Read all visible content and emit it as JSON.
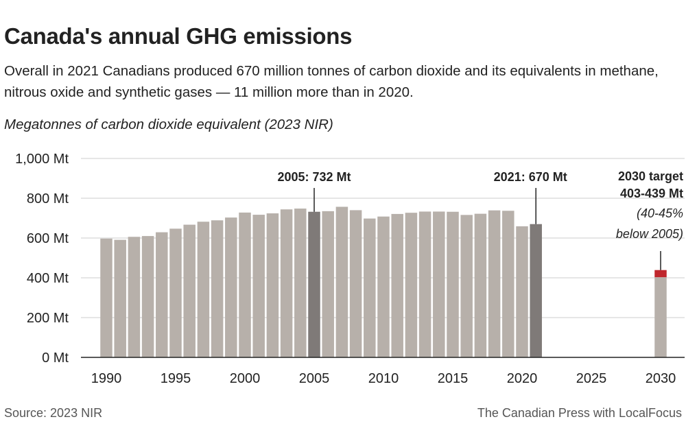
{
  "header": {
    "title": "Canada's annual GHG emissions",
    "subtitle": "Overall in 2021 Canadians produced 670 million tonnes of carbon dioxide and its equivalents in methane, nitrous oxide and synthetic gases — 11 million more than in 2020.",
    "unit_label": "Megatonnes of carbon dioxide equivalent (2023 NIR)"
  },
  "footer": {
    "source": "Source:  2023 NIR",
    "credit": "The Canadian Press with LocalFocus"
  },
  "colors": {
    "bar": "#b7b0aa",
    "highlight_bar": "#7f7a78",
    "target_range": "#c0272d",
    "grid": "#cccccc",
    "axis": "#222222"
  },
  "chart_data": {
    "type": "bar",
    "x": [
      1990,
      1991,
      1992,
      1993,
      1994,
      1995,
      1996,
      1997,
      1998,
      1999,
      2000,
      2001,
      2002,
      2003,
      2004,
      2005,
      2006,
      2007,
      2008,
      2009,
      2010,
      2011,
      2012,
      2013,
      2014,
      2015,
      2016,
      2017,
      2018,
      2019,
      2020,
      2021
    ],
    "values": [
      597,
      591,
      606,
      610,
      629,
      647,
      667,
      682,
      689,
      703,
      728,
      717,
      724,
      744,
      748,
      732,
      735,
      757,
      740,
      698,
      708,
      721,
      727,
      733,
      733,
      732,
      716,
      722,
      739,
      737,
      659,
      670
    ],
    "highlight_years": [
      2005,
      2021
    ],
    "target": {
      "year": 2030,
      "low": 403,
      "high": 439
    },
    "xlim": [
      1987,
      2031
    ],
    "ylim": [
      0,
      1000
    ],
    "yticks": [
      0,
      200,
      400,
      600,
      800,
      1000
    ],
    "ytick_labels": [
      "0 Mt",
      "200 Mt",
      "400 Mt",
      "600 Mt",
      "800 Mt",
      "1,000 Mt"
    ],
    "xticks": [
      1990,
      1995,
      2000,
      2005,
      2010,
      2015,
      2020,
      2025,
      2030
    ],
    "xtick_labels": [
      "1990",
      "1995",
      "2000",
      "2005",
      "2010",
      "2015",
      "2020",
      "2025",
      "2030"
    ],
    "grid": true,
    "annotations": {
      "a2005": "2005: 732 Mt",
      "a2021": "2021: 670 Mt",
      "target_line1": "2030 target",
      "target_line2": "403-439 Mt",
      "target_line3": "(40-45%",
      "target_line4": "below 2005)"
    }
  }
}
